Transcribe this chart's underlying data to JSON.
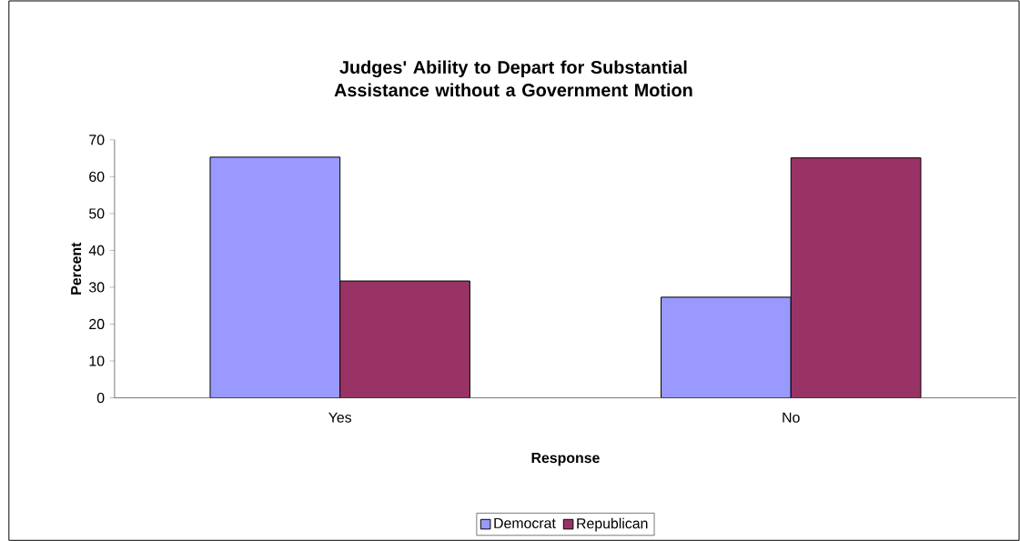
{
  "chart_data": {
    "type": "bar",
    "title": "Judges' Ability to Depart for Substantial Assistance without a Government Motion",
    "xlabel": "Response",
    "ylabel": "Percent",
    "categories": [
      "Yes",
      "No"
    ],
    "series": [
      {
        "name": "Democrat",
        "color": "#9999ff",
        "values": [
          65.3,
          27.3
        ]
      },
      {
        "name": "Republican",
        "color": "#993366",
        "values": [
          31.7,
          65.1
        ]
      }
    ],
    "ylim": [
      0,
      70
    ],
    "yticks": [
      0,
      10,
      20,
      30,
      40,
      50,
      60,
      70
    ],
    "legend": "bottom"
  }
}
